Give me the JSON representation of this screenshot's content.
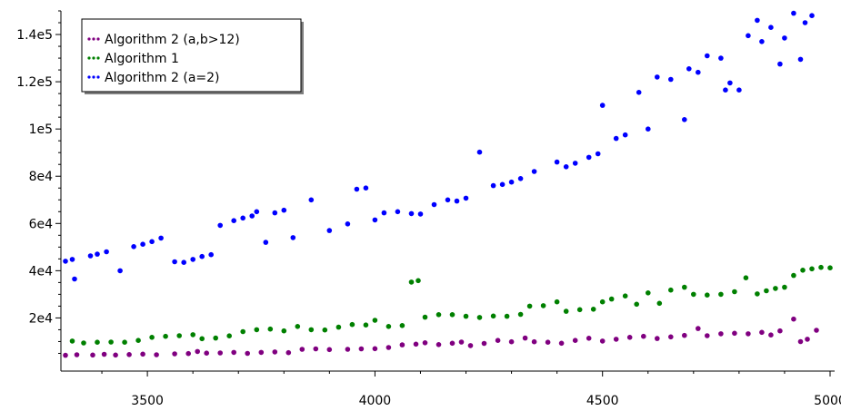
{
  "chart_data": {
    "type": "scatter",
    "title": "",
    "xlabel": "",
    "ylabel": "",
    "xlim": [
      3310,
      5010
    ],
    "ylim": [
      -2500,
      150000
    ],
    "x_ticks": [
      3500,
      4000,
      4500,
      5000
    ],
    "x_tick_labels": [
      "3500",
      "4000",
      "4500",
      "5000"
    ],
    "y_ticks": [
      20000,
      40000,
      60000,
      80000,
      100000,
      120000,
      140000
    ],
    "y_tick_labels": [
      "2e4",
      "4e4",
      "6e4",
      "8e4",
      "1e5",
      "1.2e5",
      "1.4e5"
    ],
    "grid": false,
    "legend_position": "top-left",
    "series": [
      {
        "name": "Algorithm 2 (a,b>12)",
        "color": "#800080",
        "points": [
          [
            3320,
            4200
          ],
          [
            3345,
            4400
          ],
          [
            3380,
            4300
          ],
          [
            3405,
            4600
          ],
          [
            3430,
            4300
          ],
          [
            3460,
            4500
          ],
          [
            3490,
            4700
          ],
          [
            3520,
            4400
          ],
          [
            3560,
            4800
          ],
          [
            3590,
            4900
          ],
          [
            3610,
            5800
          ],
          [
            3630,
            5100
          ],
          [
            3660,
            5200
          ],
          [
            3690,
            5400
          ],
          [
            3720,
            5000
          ],
          [
            3750,
            5400
          ],
          [
            3780,
            5600
          ],
          [
            3810,
            5300
          ],
          [
            3840,
            6700
          ],
          [
            3870,
            6900
          ],
          [
            3900,
            6600
          ],
          [
            3940,
            6700
          ],
          [
            3970,
            6900
          ],
          [
            4000,
            7000
          ],
          [
            4030,
            7500
          ],
          [
            4060,
            8600
          ],
          [
            4090,
            8900
          ],
          [
            4110,
            9500
          ],
          [
            4140,
            8700
          ],
          [
            4170,
            9300
          ],
          [
            4190,
            9800
          ],
          [
            4210,
            8300
          ],
          [
            4240,
            9200
          ],
          [
            4270,
            10500
          ],
          [
            4300,
            9900
          ],
          [
            4330,
            11500
          ],
          [
            4350,
            9900
          ],
          [
            4380,
            9700
          ],
          [
            4410,
            9300
          ],
          [
            4440,
            10500
          ],
          [
            4470,
            11400
          ],
          [
            4500,
            10200
          ],
          [
            4530,
            11000
          ],
          [
            4560,
            11800
          ],
          [
            4590,
            12200
          ],
          [
            4620,
            11300
          ],
          [
            4650,
            12000
          ],
          [
            4680,
            12600
          ],
          [
            4710,
            15500
          ],
          [
            4730,
            12500
          ],
          [
            4760,
            13300
          ],
          [
            4790,
            13500
          ],
          [
            4820,
            13300
          ],
          [
            4850,
            13900
          ],
          [
            4870,
            12800
          ],
          [
            4890,
            14500
          ],
          [
            4920,
            19500
          ],
          [
            4935,
            10000
          ],
          [
            4950,
            11000
          ],
          [
            4970,
            14800
          ]
        ]
      },
      {
        "name": "Algorithm 1",
        "color": "#008000",
        "points": [
          [
            3335,
            10200
          ],
          [
            3360,
            9400
          ],
          [
            3390,
            9700
          ],
          [
            3420,
            9800
          ],
          [
            3450,
            9700
          ],
          [
            3480,
            10500
          ],
          [
            3510,
            11800
          ],
          [
            3540,
            12200
          ],
          [
            3570,
            12500
          ],
          [
            3600,
            12900
          ],
          [
            3620,
            11200
          ],
          [
            3650,
            11500
          ],
          [
            3680,
            12400
          ],
          [
            3710,
            14200
          ],
          [
            3740,
            15000
          ],
          [
            3770,
            15300
          ],
          [
            3800,
            14500
          ],
          [
            3830,
            16400
          ],
          [
            3860,
            15000
          ],
          [
            3890,
            14900
          ],
          [
            3920,
            16100
          ],
          [
            3950,
            17200
          ],
          [
            3980,
            17000
          ],
          [
            4000,
            19000
          ],
          [
            4030,
            16400
          ],
          [
            4060,
            16800
          ],
          [
            4080,
            35200
          ],
          [
            4095,
            35800
          ],
          [
            4110,
            20300
          ],
          [
            4140,
            21400
          ],
          [
            4170,
            21400
          ],
          [
            4200,
            20700
          ],
          [
            4230,
            20200
          ],
          [
            4260,
            20800
          ],
          [
            4290,
            20700
          ],
          [
            4320,
            21500
          ],
          [
            4340,
            25000
          ],
          [
            4370,
            25200
          ],
          [
            4400,
            26800
          ],
          [
            4420,
            22800
          ],
          [
            4450,
            23500
          ],
          [
            4480,
            23700
          ],
          [
            4500,
            26800
          ],
          [
            4520,
            28000
          ],
          [
            4550,
            29300
          ],
          [
            4575,
            25800
          ],
          [
            4600,
            30600
          ],
          [
            4625,
            26200
          ],
          [
            4650,
            31800
          ],
          [
            4680,
            33000
          ],
          [
            4700,
            30000
          ],
          [
            4730,
            29700
          ],
          [
            4760,
            30000
          ],
          [
            4790,
            31100
          ],
          [
            4815,
            37000
          ],
          [
            4840,
            30200
          ],
          [
            4860,
            31500
          ],
          [
            4880,
            32500
          ],
          [
            4900,
            33000
          ],
          [
            4920,
            38000
          ],
          [
            4940,
            40200
          ],
          [
            4960,
            40800
          ],
          [
            4980,
            41400
          ],
          [
            5000,
            41200
          ]
        ]
      },
      {
        "name": "Algorithm 2 (a=2)",
        "color": "#0000ff",
        "points": [
          [
            3320,
            44000
          ],
          [
            3335,
            44800
          ],
          [
            3340,
            36500
          ],
          [
            3375,
            46300
          ],
          [
            3390,
            47000
          ],
          [
            3410,
            48000
          ],
          [
            3440,
            40000
          ],
          [
            3470,
            50200
          ],
          [
            3490,
            51200
          ],
          [
            3510,
            52300
          ],
          [
            3530,
            53800
          ],
          [
            3560,
            43800
          ],
          [
            3580,
            43500
          ],
          [
            3600,
            44800
          ],
          [
            3620,
            46000
          ],
          [
            3640,
            46800
          ],
          [
            3660,
            59200
          ],
          [
            3690,
            61200
          ],
          [
            3710,
            62300
          ],
          [
            3730,
            63200
          ],
          [
            3740,
            65000
          ],
          [
            3760,
            52000
          ],
          [
            3780,
            64500
          ],
          [
            3800,
            65600
          ],
          [
            3820,
            54000
          ],
          [
            3860,
            70000
          ],
          [
            3900,
            57000
          ],
          [
            3940,
            59800
          ],
          [
            3960,
            74500
          ],
          [
            3980,
            75000
          ],
          [
            4000,
            61500
          ],
          [
            4020,
            64500
          ],
          [
            4050,
            65000
          ],
          [
            4080,
            64200
          ],
          [
            4100,
            64000
          ],
          [
            4130,
            68000
          ],
          [
            4160,
            70000
          ],
          [
            4180,
            69500
          ],
          [
            4200,
            70700
          ],
          [
            4230,
            90200
          ],
          [
            4260,
            76000
          ],
          [
            4280,
            76500
          ],
          [
            4300,
            77500
          ],
          [
            4320,
            79000
          ],
          [
            4350,
            82000
          ],
          [
            4400,
            86000
          ],
          [
            4420,
            84000
          ],
          [
            4440,
            85500
          ],
          [
            4470,
            88000
          ],
          [
            4490,
            89500
          ],
          [
            4500,
            110000
          ],
          [
            4530,
            96000
          ],
          [
            4550,
            97500
          ],
          [
            4580,
            115500
          ],
          [
            4600,
            100000
          ],
          [
            4620,
            122000
          ],
          [
            4650,
            121000
          ],
          [
            4680,
            104000
          ],
          [
            4690,
            125500
          ],
          [
            4710,
            124000
          ],
          [
            4730,
            131000
          ],
          [
            4760,
            130000
          ],
          [
            4770,
            116500
          ],
          [
            4780,
            119500
          ],
          [
            4800,
            116500
          ],
          [
            4820,
            139500
          ],
          [
            4840,
            146000
          ],
          [
            4850,
            137000
          ],
          [
            4870,
            143000
          ],
          [
            4890,
            127500
          ],
          [
            4900,
            138500
          ],
          [
            4920,
            149000
          ],
          [
            4935,
            129500
          ],
          [
            4945,
            145000
          ],
          [
            4960,
            148000
          ]
        ]
      }
    ]
  }
}
